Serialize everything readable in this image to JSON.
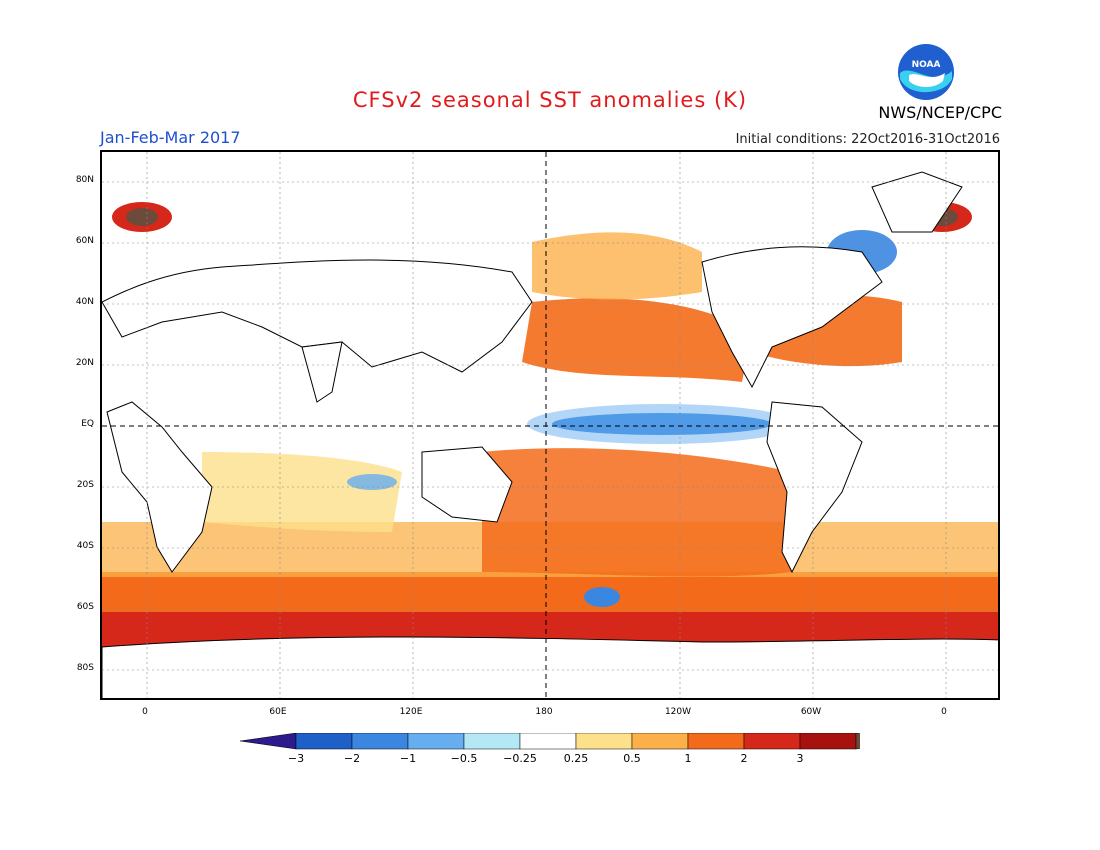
{
  "header": {
    "title": "CFSv2 seasonal SST anomalies (K)",
    "period": "Jan-Feb-Mar 2017",
    "initial_conditions": "Initial conditions: 22Oct2016-31Oct2016",
    "agency": "NWS/NCEP/CPC",
    "logo_text": "NOAA"
  },
  "axes": {
    "lat_labels": [
      "80N",
      "60N",
      "40N",
      "20N",
      "EQ",
      "20S",
      "40S",
      "60S",
      "80S"
    ],
    "lon_labels": [
      "0",
      "60E",
      "120E",
      "180",
      "120W",
      "60W",
      "0"
    ]
  },
  "colorbar": {
    "labels": [
      "-3",
      "-2",
      "-1",
      "-0.5",
      "-0.25",
      "0.25",
      "0.5",
      "1",
      "2",
      "3"
    ],
    "colors": [
      "#2d1a8c",
      "#1f5fc8",
      "#3a86e0",
      "#66aef0",
      "#b5e8f5",
      "#ffffff",
      "#fde08a",
      "#fbb04a",
      "#f36b1a",
      "#d6281a",
      "#a8120e",
      "#6e4a3a"
    ]
  },
  "chart_data": {
    "type": "heatmap",
    "title": "CFSv2 seasonal SST anomalies (K)",
    "period": "Jan-Feb-Mar 2017",
    "units": "K",
    "projection": "equirectangular, 0 to 360 longitude with repeat",
    "lat_range": [
      -90,
      90
    ],
    "dashed_lines": [
      "equator",
      "180 meridian"
    ]
  }
}
